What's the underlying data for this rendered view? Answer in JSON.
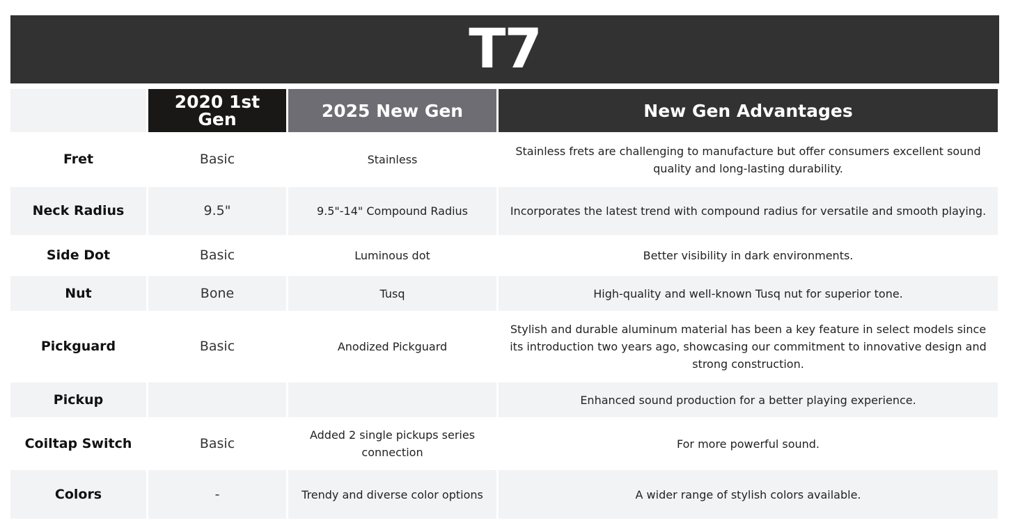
{
  "title": "T7",
  "headers": [
    "",
    "2020 1st Gen",
    "2025 New Gen",
    "New Gen Advantages"
  ],
  "colors": {
    "title_bg": "#333233",
    "first_gen_bg": "#1a1816",
    "new_gen_bg": "#6d6d73",
    "advantages_bg": "#333233",
    "alt_row_bg": "#f2f3f5"
  },
  "rows": [
    {
      "feature": "Fret",
      "gen1": "Basic",
      "gen2": "Stainless",
      "advantage": "Stainless frets are challenging to manufacture but offer consumers excellent sound quality and long-lasting durability."
    },
    {
      "feature": "Neck Radius",
      "gen1": "9.5\"",
      "gen2": "9.5\"-14\" Compound Radius",
      "advantage": "Incorporates the latest trend with compound radius for versatile and smooth playing."
    },
    {
      "feature": "Side Dot",
      "gen1": "Basic",
      "gen2": "Luminous dot",
      "advantage": "Better visibility in dark environments."
    },
    {
      "feature": "Nut",
      "gen1": "Bone",
      "gen2": "Tusq",
      "advantage": "High-quality and well-known Tusq nut for superior tone."
    },
    {
      "feature": "Pickguard",
      "gen1": "Basic",
      "gen2": "Anodized Pickguard",
      "advantage": "Stylish and durable aluminum material has been a key feature in select models since its introduction two years ago, showcasing our commitment to innovative design and strong construction."
    },
    {
      "feature": "Pickup",
      "gen1": "",
      "gen2": "",
      "advantage": "Enhanced sound production for a better playing experience."
    },
    {
      "feature": "Coiltap Switch",
      "gen1": "Basic",
      "gen2": "Added 2 single pickups series connection",
      "advantage": "For more powerful sound."
    },
    {
      "feature": "Colors",
      "gen1": "-",
      "gen2": "Trendy and diverse color options",
      "advantage": "A wider range of stylish colors available."
    }
  ]
}
